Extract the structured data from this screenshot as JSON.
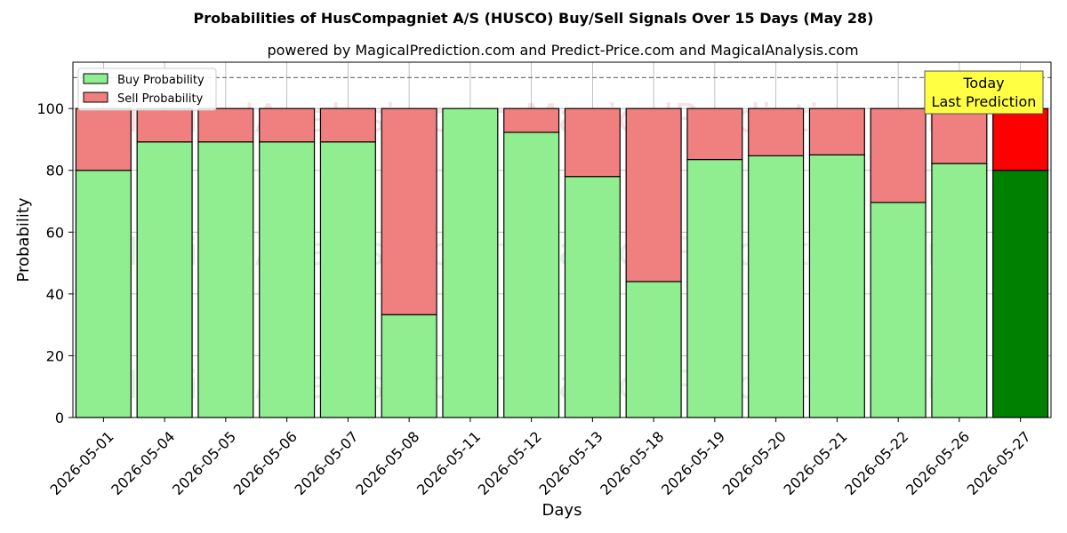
{
  "chart_data": {
    "type": "bar",
    "title": "Probabilities of HusCompagniet A/S (HUSCO) Buy/Sell Signals Over 15 Days (May 28)",
    "subtitle": "powered by MagicalPrediction.com and Predict-Price.com and MagicalAnalysis.com",
    "xlabel": "Days",
    "ylabel": "Probability",
    "ylim": [
      0,
      115
    ],
    "yticks": [
      0,
      20,
      40,
      60,
      80,
      100
    ],
    "reference_line": 110,
    "grid": true,
    "legend_position": "top-left",
    "categories": [
      "2026-05-01",
      "2026-05-04",
      "2026-05-05",
      "2026-05-06",
      "2026-05-07",
      "2026-05-08",
      "2026-05-11",
      "2026-05-12",
      "2026-05-13",
      "2026-05-18",
      "2026-05-19",
      "2026-05-20",
      "2026-05-21",
      "2026-05-22",
      "2026-05-26",
      "2026-05-27"
    ],
    "series": [
      {
        "name": "Buy Probability",
        "color": "#90EE90",
        "values": [
          80,
          89.2,
          89.2,
          89.2,
          89.2,
          33.3,
          100,
          92.3,
          78,
          44,
          83.5,
          84.7,
          85,
          69.6,
          82.2,
          80
        ]
      },
      {
        "name": "Sell Probability",
        "color": "#F08080",
        "values": [
          20,
          10.8,
          10.8,
          10.8,
          10.8,
          66.7,
          0,
          7.7,
          22,
          56,
          16.5,
          15.3,
          15,
          30.4,
          17.8,
          20
        ]
      }
    ],
    "highlight": {
      "index": 15,
      "buy_color": "#008000",
      "sell_color": "#FF0000"
    },
    "annotation": {
      "lines": [
        "Today",
        "Last Prediction"
      ],
      "background": "#FFFF44"
    },
    "watermarks": [
      "MagicalAnalysis.com",
      "MagicalPrediction.com"
    ]
  }
}
